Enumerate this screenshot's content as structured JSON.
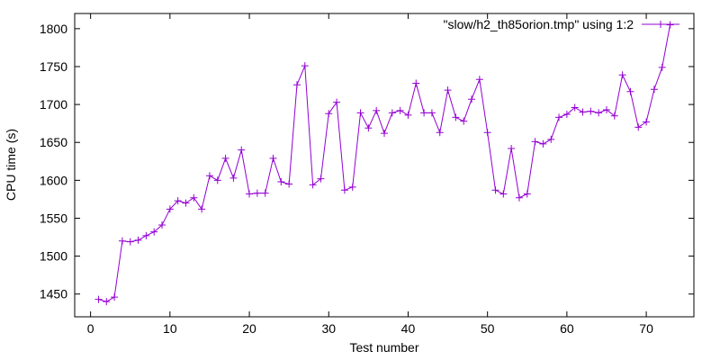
{
  "chart_data": {
    "type": "line",
    "title": "",
    "xlabel": "Test number",
    "ylabel": "CPU time (s)",
    "xlim": [
      -2,
      76
    ],
    "ylim": [
      1420,
      1820
    ],
    "xticks": [
      0,
      10,
      20,
      30,
      40,
      50,
      60,
      70
    ],
    "yticks": [
      1450,
      1500,
      1550,
      1600,
      1650,
      1700,
      1750,
      1800
    ],
    "grid": false,
    "legend_position": "top-right",
    "series": [
      {
        "name": "\"slow/h2_th85orion.tmp\" using 1:2",
        "color": "#9400d3",
        "marker": "plus",
        "x": [
          1,
          2,
          3,
          4,
          5,
          6,
          7,
          8,
          9,
          10,
          11,
          12,
          13,
          14,
          15,
          16,
          17,
          18,
          19,
          20,
          21,
          22,
          23,
          24,
          25,
          26,
          27,
          28,
          29,
          30,
          31,
          32,
          33,
          34,
          35,
          36,
          37,
          38,
          39,
          40,
          41,
          42,
          43,
          44,
          45,
          46,
          47,
          48,
          49,
          50,
          51,
          52,
          53,
          54,
          55,
          56,
          57,
          58,
          59,
          60,
          61,
          62,
          63,
          64,
          65,
          66,
          67,
          68,
          69,
          70,
          71,
          72,
          73
        ],
        "y": [
          1443,
          1440,
          1446,
          1520,
          1519,
          1521,
          1527,
          1532,
          1541,
          1562,
          1573,
          1570,
          1577,
          1562,
          1606,
          1600,
          1629,
          1603,
          1640,
          1582,
          1583,
          1583,
          1629,
          1598,
          1595,
          1726,
          1751,
          1594,
          1602,
          1688,
          1703,
          1587,
          1591,
          1689,
          1669,
          1692,
          1662,
          1689,
          1692,
          1686,
          1728,
          1689,
          1689,
          1663,
          1719,
          1683,
          1678,
          1707,
          1733,
          1663,
          1587,
          1582,
          1642,
          1577,
          1582,
          1651,
          1648,
          1654,
          1683,
          1687,
          1696,
          1690,
          1691,
          1689,
          1693,
          1685,
          1739,
          1717,
          1670,
          1677,
          1720,
          1749,
          1805
        ]
      }
    ]
  }
}
